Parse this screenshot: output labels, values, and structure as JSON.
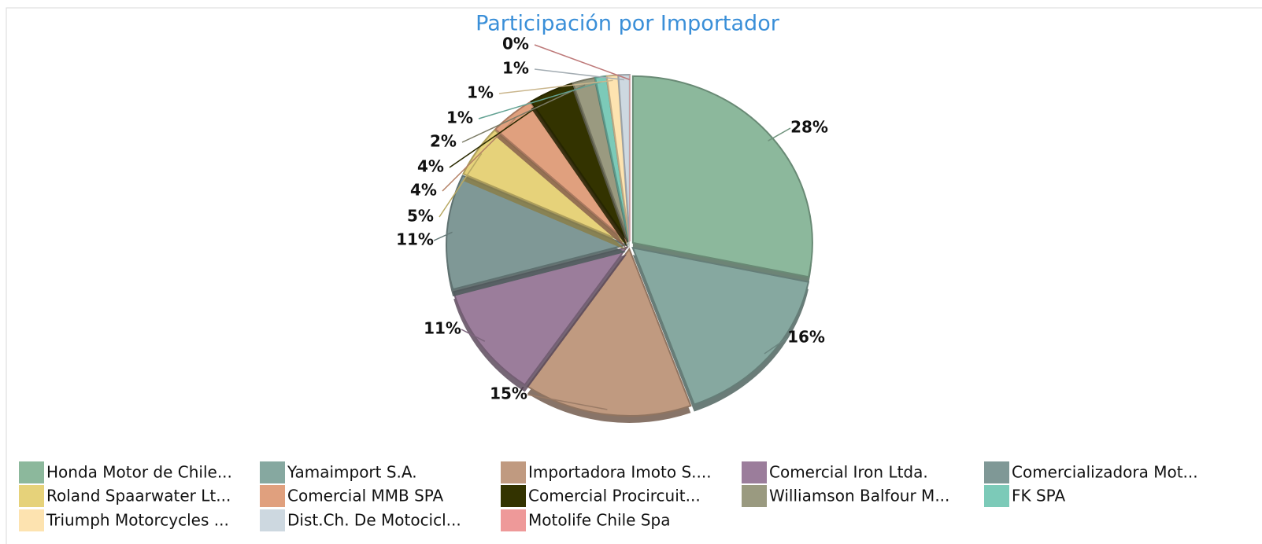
{
  "chart_data": {
    "type": "pie",
    "title": "Participación por Importador",
    "categories": [
      "Honda Motor de Chile...",
      "Yamaimport S.A.",
      "Importadora Imoto S....",
      "Comercial Iron Ltda.",
      "Comercializadora Mot...",
      "Roland Spaarwater Lt...",
      "Comercial MMB SPA",
      "Comercial Procircuit...",
      "Williamson Balfour M...",
      "FK SPA",
      "Triumph Motorcycles ...",
      "Dist.Ch. De Motocicl...",
      "Motolife Chile Spa"
    ],
    "values": [
      28,
      16,
      15,
      11,
      11,
      5,
      4,
      4,
      2,
      1,
      1,
      1,
      0
    ],
    "value_labels": [
      "28%",
      "16%",
      "15%",
      "11%",
      "11%",
      "5%",
      "4%",
      "4%",
      "2%",
      "1%",
      "1%",
      "1%",
      "0%"
    ],
    "colors": [
      "#8cb89c",
      "#86a8a0",
      "#c09a80",
      "#9b7d9b",
      "#7f9896",
      "#e6d27a",
      "#e0a07e",
      "#333300",
      "#9a9a80",
      "#7ccab8",
      "#fde3b0",
      "#cdd8e0",
      "#ee9999"
    ],
    "legend": "bottom"
  }
}
